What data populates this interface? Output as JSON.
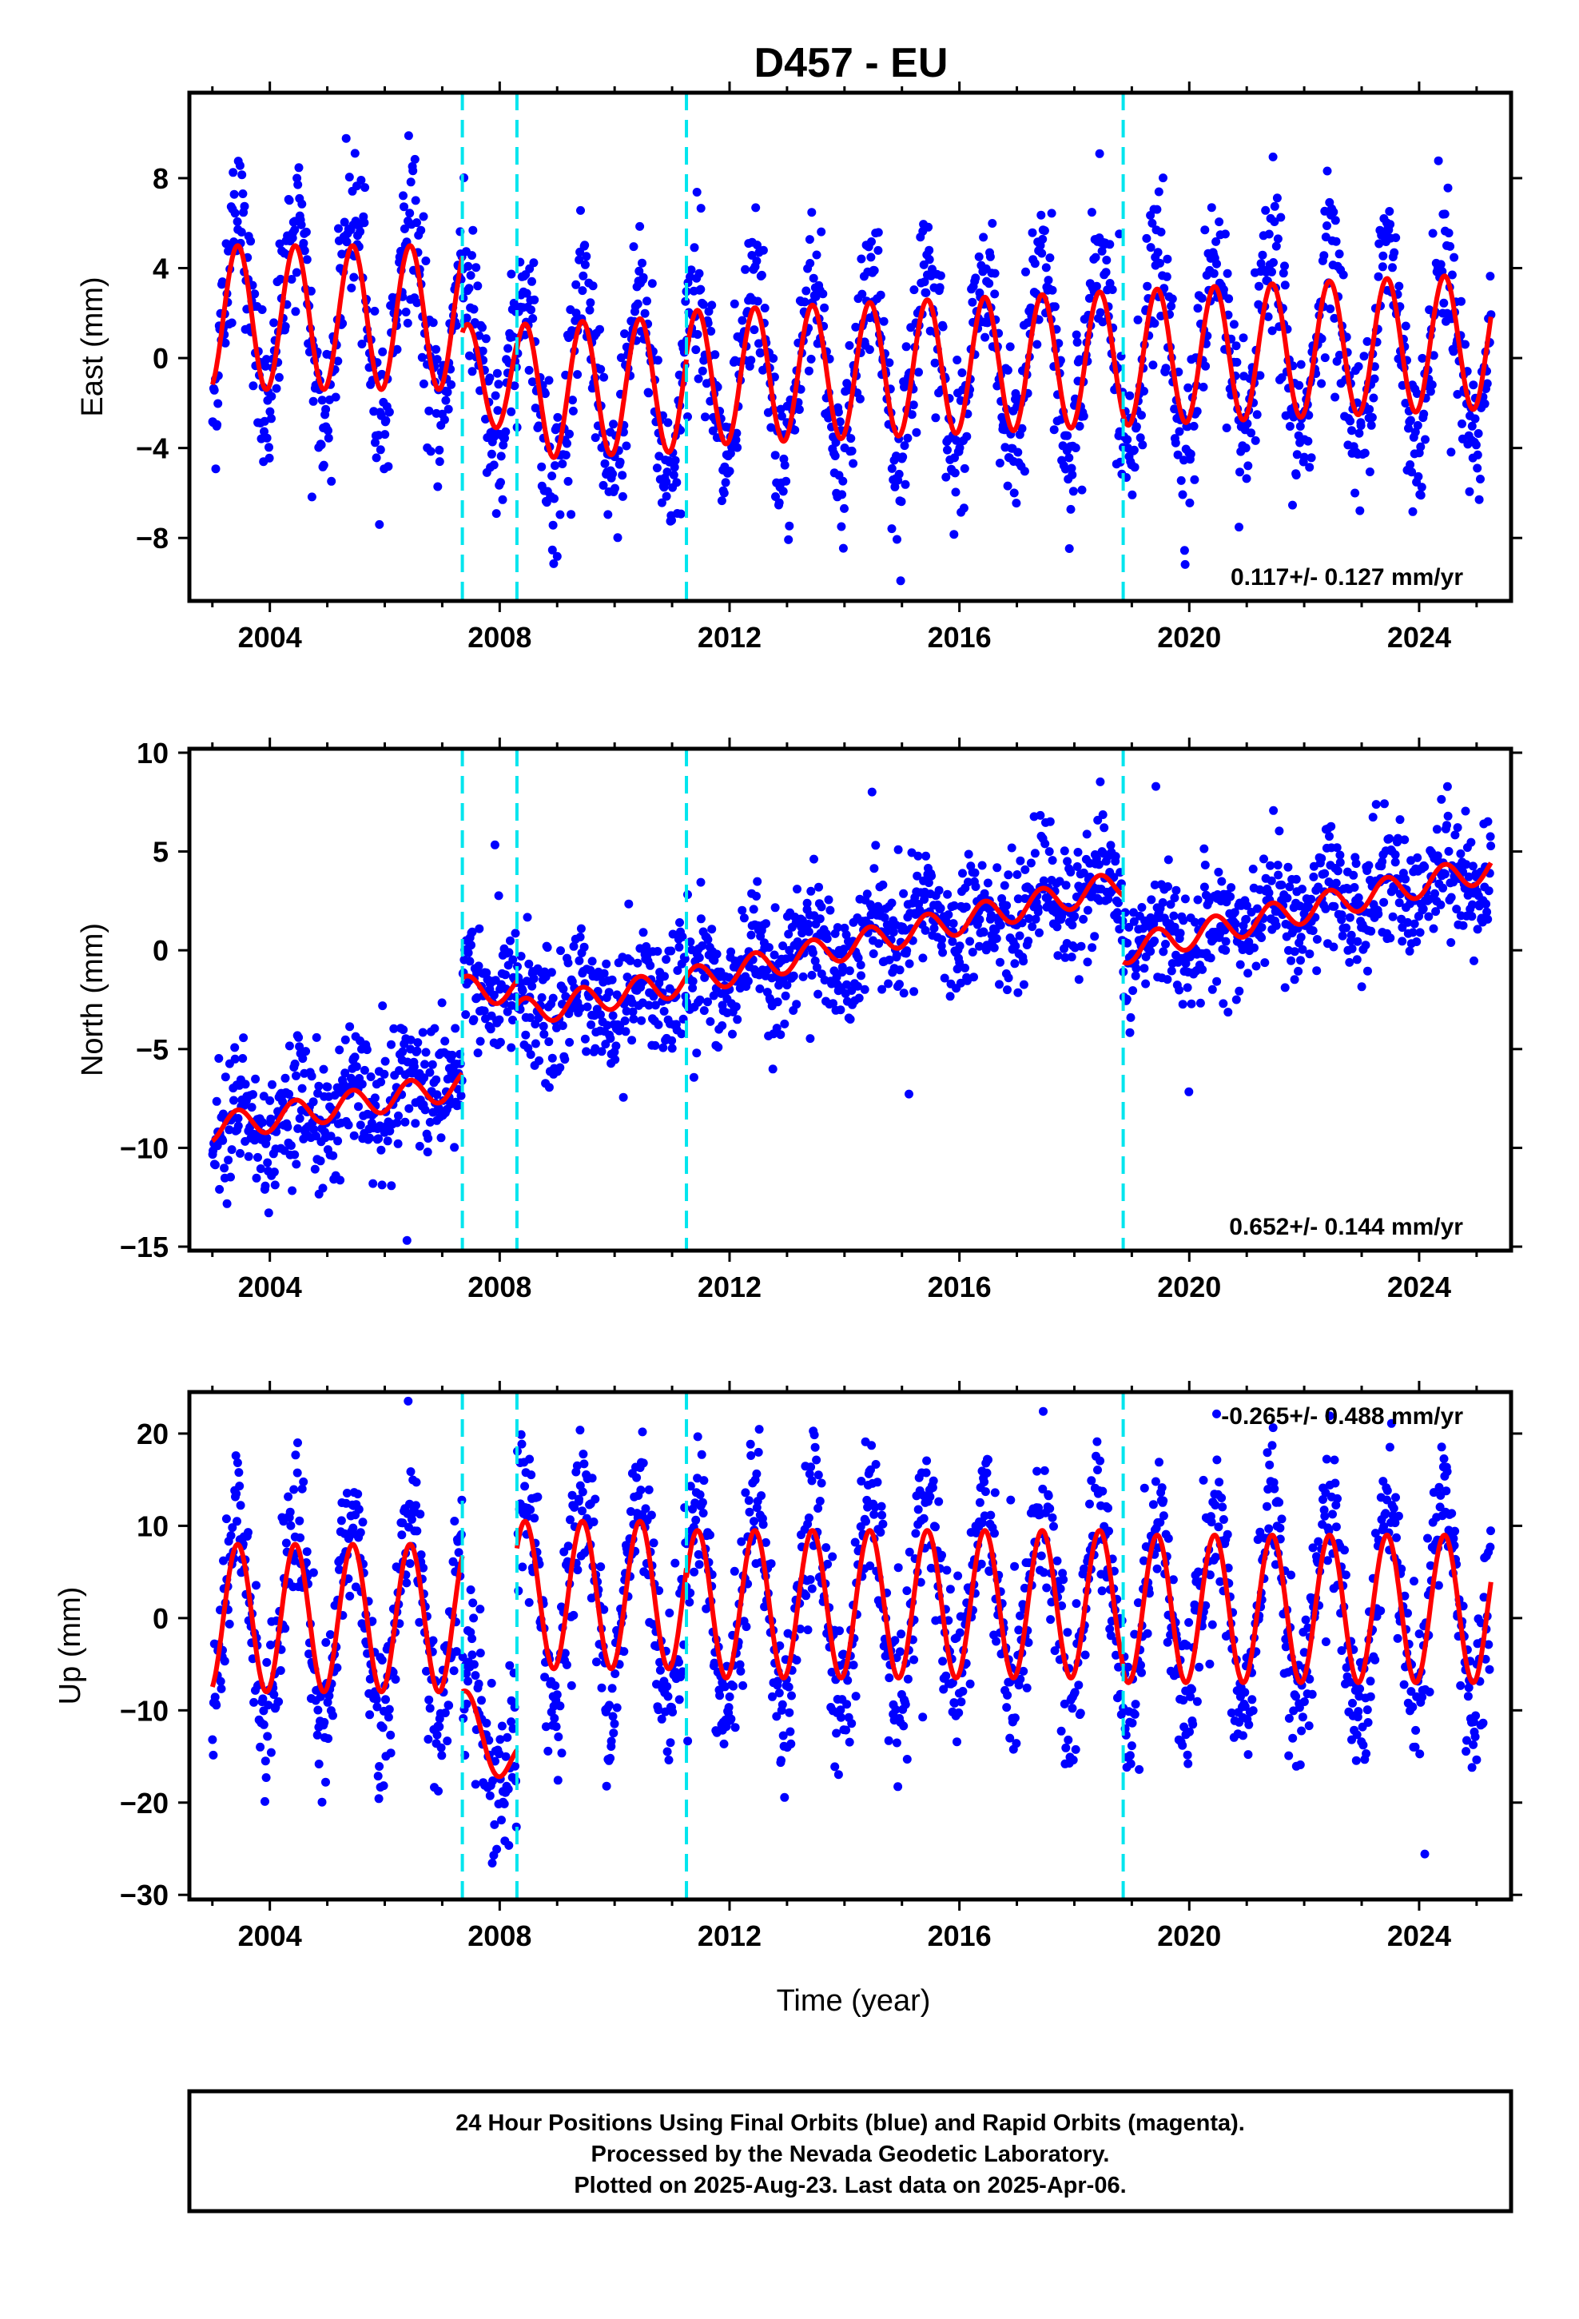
{
  "chart_data": {
    "title": "D457 - EU",
    "type": "scatter",
    "x_ticks": [
      2004,
      2008,
      2012,
      2016,
      2020,
      2024
    ],
    "xlim": [
      2002.6,
      2025.6
    ],
    "xlabel": "Time (year)",
    "offset_lines": [
      2007.35,
      2008.3,
      2011.25,
      2018.85
    ],
    "colors": {
      "data": "#0000ff",
      "model": "#ff0000",
      "offset": "#00e5ee",
      "frame": "#000000"
    },
    "legend_note": "Final Orbits (blue)",
    "panels": [
      {
        "ylabel": "East (mm)",
        "ylim": [
          -10.8,
          11.8
        ],
        "yticks": [
          -8,
          -4,
          0,
          4,
          8
        ],
        "rate_text": "0.117+/- 0.127 mm/yr",
        "rate_position": "bottom-right",
        "model_segments": [
          {
            "x0": 2003.0,
            "x1": 2007.35,
            "base": 1.8,
            "slope": 0.0,
            "amplitude": 3.2
          },
          {
            "x0": 2007.35,
            "x1": 2008.3,
            "base": -0.8,
            "slope": 0.0,
            "amplitude": 2.3
          },
          {
            "x0": 2008.3,
            "x1": 2011.25,
            "base": -1.5,
            "slope": 0.117,
            "amplitude": 3.0
          },
          {
            "x0": 2011.25,
            "x1": 2018.85,
            "base": -0.9,
            "slope": 0.117,
            "amplitude": 3.0
          },
          {
            "x0": 2018.85,
            "x1": 2025.25,
            "base": 0.0,
            "slope": 0.117,
            "amplitude": 3.0
          }
        ],
        "scatter_sd": 1.7,
        "scatter_amp_extra": 1.2
      },
      {
        "ylabel": "North (mm)",
        "ylim": [
          -15.2,
          10.2
        ],
        "yticks": [
          -15,
          -10,
          -5,
          0,
          5,
          10
        ],
        "rate_text": "0.652+/- 0.144 mm/yr",
        "rate_position": "bottom-right",
        "model_segments": [
          {
            "x0": 2003.0,
            "x1": 2007.35,
            "base": -9.0,
            "slope": 0.5,
            "amplitude": 0.7
          },
          {
            "x0": 2007.35,
            "x1": 2008.3,
            "base": -2.0,
            "slope": 0.0,
            "amplitude": 0.7
          },
          {
            "x0": 2008.3,
            "x1": 2011.25,
            "base": -3.2,
            "slope": 0.55,
            "amplitude": 0.7
          },
          {
            "x0": 2011.25,
            "x1": 2018.85,
            "base": -1.6,
            "slope": 0.652,
            "amplitude": 0.7
          },
          {
            "x0": 2018.85,
            "x1": 2025.25,
            "base": 0.0,
            "slope": 0.652,
            "amplitude": 0.7
          }
        ],
        "scatter_sd": 1.6,
        "scatter_amp_extra": 0.3
      },
      {
        "ylabel": "Up (mm)",
        "ylim": [
          -30.5,
          24.5
        ],
        "yticks": [
          -30,
          -20,
          -10,
          0,
          10,
          20
        ],
        "rate_text": "-0.265+/- 0.488 mm/yr",
        "rate_position": "top-right",
        "model_segments": [
          {
            "x0": 2003.0,
            "x1": 2007.35,
            "base": 0.0,
            "slope": 0.0,
            "amplitude": 8.0
          },
          {
            "x0": 2007.35,
            "x1": 2008.3,
            "base": -10.5,
            "slope": -6.0,
            "amplitude": 3.0
          },
          {
            "x0": 2008.3,
            "x1": 2011.25,
            "base": 2.5,
            "slope": 0.0,
            "amplitude": 8.0
          },
          {
            "x0": 2011.25,
            "x1": 2018.85,
            "base": 1.5,
            "slope": 0.0,
            "amplitude": 8.0
          },
          {
            "x0": 2018.85,
            "x1": 2025.25,
            "base": 1.0,
            "slope": 0.0,
            "amplitude": 8.0
          }
        ],
        "scatter_sd": 4.2,
        "scatter_amp_extra": 3.0
      }
    ]
  },
  "footer": {
    "line1": "24 Hour Positions Using Final Orbits (blue) and Rapid Orbits (magenta).",
    "line2": "Processed by the Nevada Geodetic Laboratory.",
    "line3": "Plotted on 2025-Aug-23. Last data on 2025-Apr-06."
  }
}
